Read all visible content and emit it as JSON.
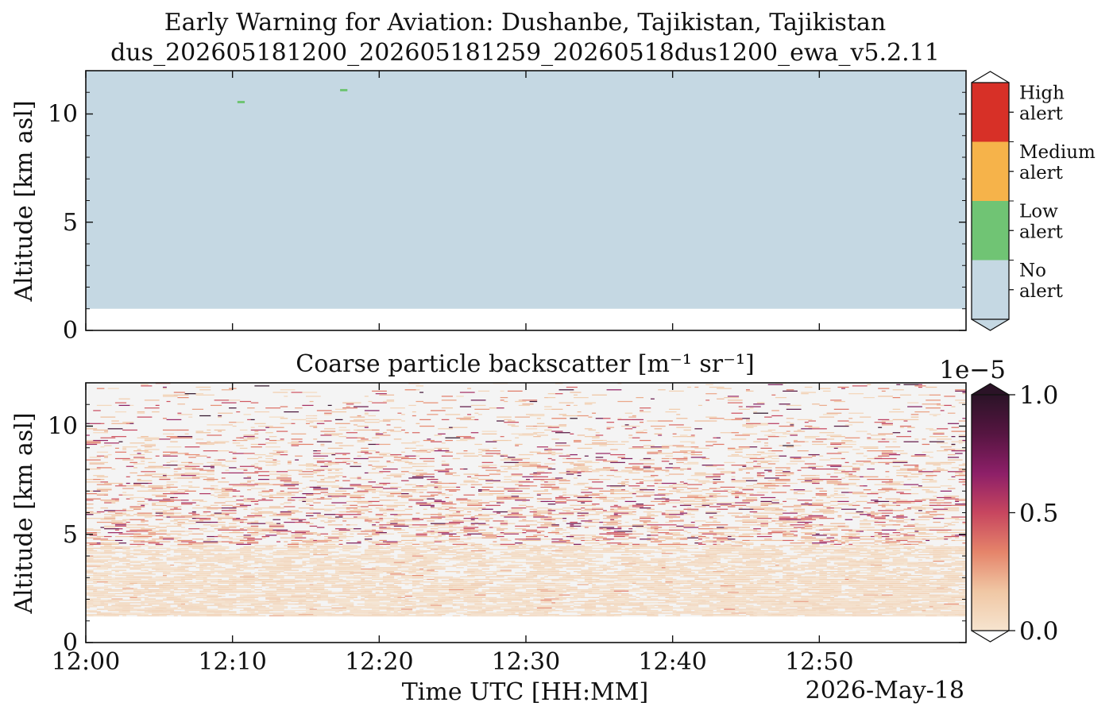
{
  "figure": {
    "title": "Early Warning for Aviation: Dushanbe, Tajikistan, Tajikistan",
    "subtitle": "dus_202605181200_202605181259_20260518dus1200_ewa_v5.2.11",
    "date_label": "2026-May-18"
  },
  "chart_data": [
    {
      "type": "heatmap",
      "name": "alert-level",
      "title": "",
      "xlabel": "",
      "ylabel": "Altitude [km asl]",
      "xlim": [
        "12:00",
        "12:59"
      ],
      "ylim": [
        0,
        12
      ],
      "yticks": [
        0,
        5,
        10
      ],
      "data_base_altitude_km": 1.0,
      "background_class": "No alert",
      "features": [
        {
          "time_start": "12:10:20",
          "time_end": "12:10:50",
          "altitude_km": 10.55,
          "class": "Low alert"
        },
        {
          "time_start": "12:17:20",
          "time_end": "12:17:50",
          "altitude_km": 11.1,
          "class": "Low alert"
        }
      ],
      "colorbar": {
        "type": "categorical",
        "classes": [
          {
            "label": "No alert",
            "color": "#c5d8e3"
          },
          {
            "label": "Low alert",
            "color": "#70c474"
          },
          {
            "label": "Medium alert",
            "color": "#f6b34a"
          },
          {
            "label": "High alert",
            "color": "#d73027"
          }
        ]
      }
    },
    {
      "type": "heatmap",
      "name": "coarse-particle-backscatter",
      "title": "Coarse particle backscatter [m⁻¹ sr⁻¹]",
      "xlabel": "Time UTC [HH:MM]",
      "ylabel": "Altitude [km asl]",
      "xlim": [
        "12:00",
        "12:59"
      ],
      "ylim": [
        0,
        12
      ],
      "yticks": [
        0,
        5,
        10
      ],
      "xticks": [
        "12:00",
        "12:10",
        "12:20",
        "12:30",
        "12:40",
        "12:50"
      ],
      "data_base_altitude_km": 1.2,
      "colorbar": {
        "type": "continuous",
        "min": 0.0,
        "max": 1.0,
        "ticks": [
          "0.0",
          "0.5",
          "1.0"
        ],
        "scale_label": "1e−5",
        "colors": [
          "#f6e4cf",
          "#f0c7a4",
          "#e5846a",
          "#c7465f",
          "#8d1f68",
          "#561541",
          "#2b1327"
        ]
      },
      "background_color": "#f4f4f4",
      "profile_description": {
        "dense_band_km": [
          1.2,
          4.5
        ],
        "dense_band_value_x1e5": [
          0.02,
          0.12
        ],
        "sparse_range_km": [
          4.5,
          12
        ],
        "sparse_max_value_x1e5": 1.0
      }
    }
  ]
}
